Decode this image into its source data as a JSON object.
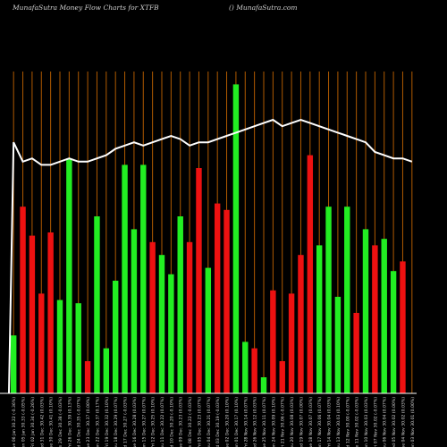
{
  "header": {
    "left": "MunafaSutra  Money Flow  Charts for XTFB",
    "right": "() MunafaSutra.com"
  },
  "colors": {
    "background": "#000000",
    "up": "#22ee22",
    "down": "#ee1111",
    "grid": "#b05a00",
    "line": "#ffffff",
    "axis": "#ffffff"
  },
  "chart_data": {
    "type": "bar",
    "title": "MunafaSutra  Money Flow  Charts for XTFB",
    "grid": true,
    "categories": [
      "Tue 06 Jan",
      "Mon 05 Jan",
      "Fri 02 Jan",
      "Wed 31 Dec",
      "Tue 30 Dec",
      "Mon 29 Dec",
      "Fri 26 Dec",
      "Wed 24 Dec",
      "Tue 23 Dec",
      "Mon 22 Dec",
      "Fri 19 Dec",
      "Thu 18 Dec",
      "Wed 17 Dec",
      "Tue 16 Dec",
      "Mon 15 Dec",
      "Fri 12 Dec",
      "Thu 11 Dec",
      "Wed 10 Dec",
      "Tue 09 Dec",
      "Mon 08 Dec",
      "Fri 05 Dec",
      "Thu 04 Dec",
      "Wed 03 Dec",
      "Tue 02 Dec",
      "Mon 01 Dec",
      "Fri 28 Nov",
      "Wed 26 Nov",
      "Tue 25 Nov",
      "Mon 24 Nov",
      "Fri 21 Nov",
      "Thu 20 Nov",
      "Wed 19 Nov",
      "Tue 18 Nov",
      "Mon 17 Nov",
      "Fri 14 Nov",
      "Thu 13 Nov",
      "Wed 12 Nov",
      "Tue 11 Nov",
      "Mon 10 Nov",
      "Fri 07 Nov",
      "Thu 06 Nov",
      "Wed 05 Nov",
      "Tue 04 Nov",
      "Mon 03 Nov"
    ],
    "x_tick_labels": [
      "30.22 (-0.36%)",
      "30.33 (-0.05%)",
      "30.34 (-0.26%)",
      "30.42 (0.03%)",
      "30.41 (0.10%)",
      "30.38 (-0.03%)",
      "30.39 (0.13%)",
      "30.35 (-0.07%)",
      "30.37 (0.00%)",
      "30.37 (0.17%)",
      "30.32 (0.10%)",
      "30.29 (0.07%)",
      "30.27 (-0.03%)",
      "30.28 (0.03%)",
      "30.27 (0.07%)",
      "30.25 (0.10%)",
      "30.22 (0.07%)",
      "30.20 (-0.10%)",
      "30.23 (0.03%)",
      "30.22 (-0.03%)",
      "30.23 (0.07%)",
      "30.21 (0.07%)",
      "30.19 (-0.03%)",
      "30.20 (0.10%)",
      "30.17 (0.10%)",
      "30.14 (0.07%)",
      "30.12 (0.03%)",
      "30.11 (0.07%)",
      "30.09 (0.10%)",
      "30.06 (-0.07%)",
      "30.08 (0.03%)",
      "30.07 (0.00%)",
      "30.07 (0.03%)",
      "30.06 (0.07%)",
      "30.04 (0.03%)",
      "30.03 (0.10%)",
      "30.00 (-0.07%)",
      "30.02 (-0.03%)",
      "30.03 (0.03%)",
      "30.02 (-0.07%)",
      "30.04 (0.07%)",
      "30.02 (0.00%)",
      "30.02 (0.03%)",
      "30.01 (0.00%)"
    ],
    "money_flow": [
      0.78,
      0.72,
      0.73,
      0.71,
      0.71,
      0.72,
      0.73,
      0.72,
      0.72,
      0.73,
      0.74,
      0.76,
      0.77,
      0.78,
      0.77,
      0.78,
      0.79,
      0.8,
      0.79,
      0.77,
      0.78,
      0.78,
      0.79,
      0.8,
      0.81,
      0.82,
      0.83,
      0.84,
      0.85,
      0.83,
      0.84,
      0.85,
      0.84,
      0.83,
      0.82,
      0.81,
      0.8,
      0.79,
      0.78,
      0.75,
      0.74,
      0.73,
      0.73,
      0.72
    ],
    "volume": [
      0.18,
      0.58,
      0.49,
      0.31,
      0.5,
      0.29,
      0.73,
      0.28,
      0.1,
      0.55,
      0.14,
      0.35,
      0.71,
      0.51,
      0.71,
      0.47,
      0.43,
      0.37,
      0.55,
      0.47,
      0.7,
      0.39,
      0.59,
      0.57,
      0.96,
      0.16,
      0.14,
      0.05,
      0.32,
      0.1,
      0.31,
      0.43,
      0.74,
      0.46,
      0.58,
      0.3,
      0.58,
      0.25,
      0.51,
      0.46,
      0.48,
      0.38,
      0.41,
      0.0
    ],
    "direction": [
      "up",
      "down",
      "down",
      "down",
      "down",
      "up",
      "up",
      "up",
      "down",
      "up",
      "up",
      "up",
      "up",
      "up",
      "up",
      "down",
      "up",
      "up",
      "up",
      "down",
      "down",
      "up",
      "down",
      "down",
      "up",
      "up",
      "down",
      "up",
      "down",
      "down",
      "down",
      "down",
      "down",
      "up",
      "up",
      "up",
      "up",
      "down",
      "up",
      "down",
      "up",
      "up",
      "down",
      "up"
    ]
  }
}
